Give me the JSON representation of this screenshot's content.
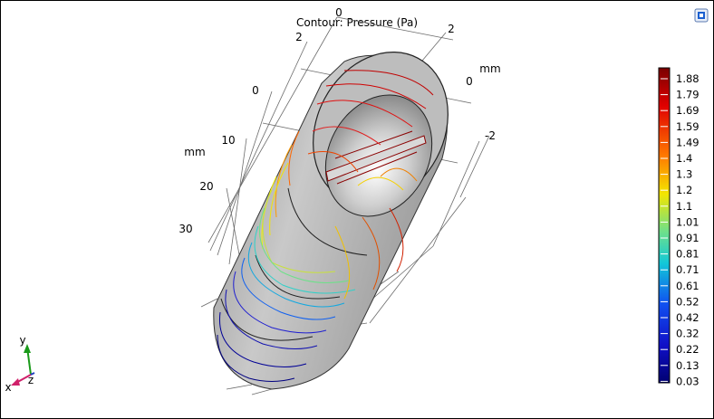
{
  "plot": {
    "title": "Contour: Pressure (Pa)",
    "unit_label": "mm",
    "x_ticks": [
      "0",
      "2"
    ],
    "y_ticks": [
      "2",
      "0",
      "-2"
    ],
    "z_ticks": [
      "0",
      "10",
      "20",
      "30"
    ]
  },
  "legend": {
    "values": [
      "1.88",
      "1.79",
      "1.69",
      "1.59",
      "1.49",
      "1.4",
      "1.3",
      "1.2",
      "1.1",
      "1.01",
      "0.91",
      "0.81",
      "0.71",
      "0.61",
      "0.52",
      "0.42",
      "0.32",
      "0.22",
      "0.13",
      "0.03"
    ]
  },
  "triad": {
    "x": "x",
    "y": "y",
    "z": "z"
  },
  "colors": {
    "high": "#b00000",
    "mid": "#f5e60a",
    "low": "#000096",
    "pipe": "#a9a9a9"
  },
  "icons": {
    "view_button": "navigation-icon"
  }
}
